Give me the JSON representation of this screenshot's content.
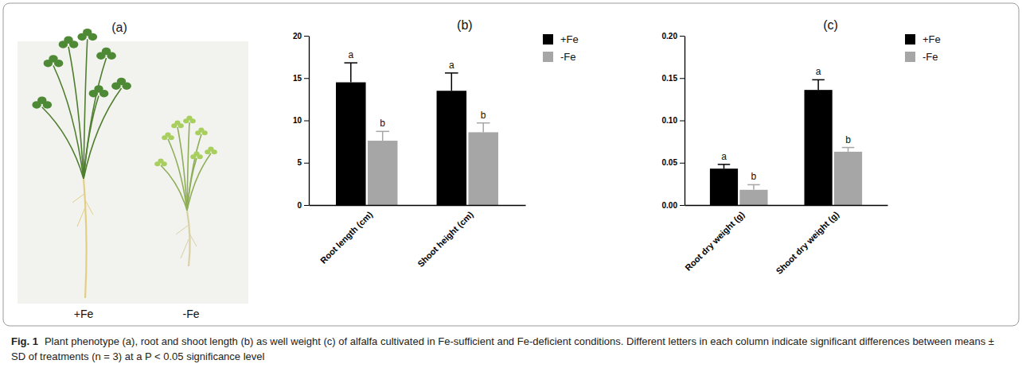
{
  "photo": {
    "label": "(a)",
    "captions": [
      "+Fe",
      "-Fe"
    ]
  },
  "chart_data": [
    {
      "type": "bar",
      "title": "(b)",
      "categories": [
        "Root length (cm)",
        "Shoot height (cm)"
      ],
      "series": [
        {
          "name": "+Fe",
          "color": "#000000",
          "values": [
            14.5,
            13.5
          ],
          "error": [
            2.3,
            2.1
          ],
          "annotations": [
            "a",
            "a"
          ]
        },
        {
          "name": "-Fe",
          "color": "#a6a6a6",
          "values": [
            7.6,
            8.6
          ],
          "error": [
            1.1,
            1.1
          ],
          "annotations": [
            "b",
            "b"
          ]
        }
      ],
      "ylim": [
        0,
        20
      ],
      "yticks": [
        0,
        5,
        10,
        15,
        20
      ],
      "grid": false,
      "legend": "right"
    },
    {
      "type": "bar",
      "title": "(c)",
      "categories": [
        "Root dry weight (g)",
        "Shoot dry weight (g)"
      ],
      "series": [
        {
          "name": "+Fe",
          "color": "#000000",
          "values": [
            0.043,
            0.136
          ],
          "error": [
            0.005,
            0.012
          ],
          "annotations": [
            "a",
            "a"
          ]
        },
        {
          "name": "-Fe",
          "color": "#a6a6a6",
          "values": [
            0.018,
            0.063
          ],
          "error": [
            0.006,
            0.005
          ],
          "annotations": [
            "b",
            "b"
          ]
        }
      ],
      "ylim": [
        0,
        0.2
      ],
      "yticks": [
        {
          "value": 0,
          "label": "0.00"
        },
        {
          "value": 0.05,
          "label": "0.05"
        },
        {
          "value": 0.1,
          "label": "0.10"
        },
        {
          "value": 0.15,
          "label": "0.15"
        },
        {
          "value": 0.2,
          "label": "0.20"
        }
      ],
      "grid": false,
      "legend": "right"
    }
  ],
  "caption": {
    "label": "Fig. 1",
    "text": "Plant phenotype (a), root and shoot length (b) as well weight (c) of alfalfa cultivated in Fe-sufficient and Fe-deficient conditions. Different letters in each column indicate significant differences between means ± SD of treatments (n = 3) at a P < 0.05 significance level"
  }
}
